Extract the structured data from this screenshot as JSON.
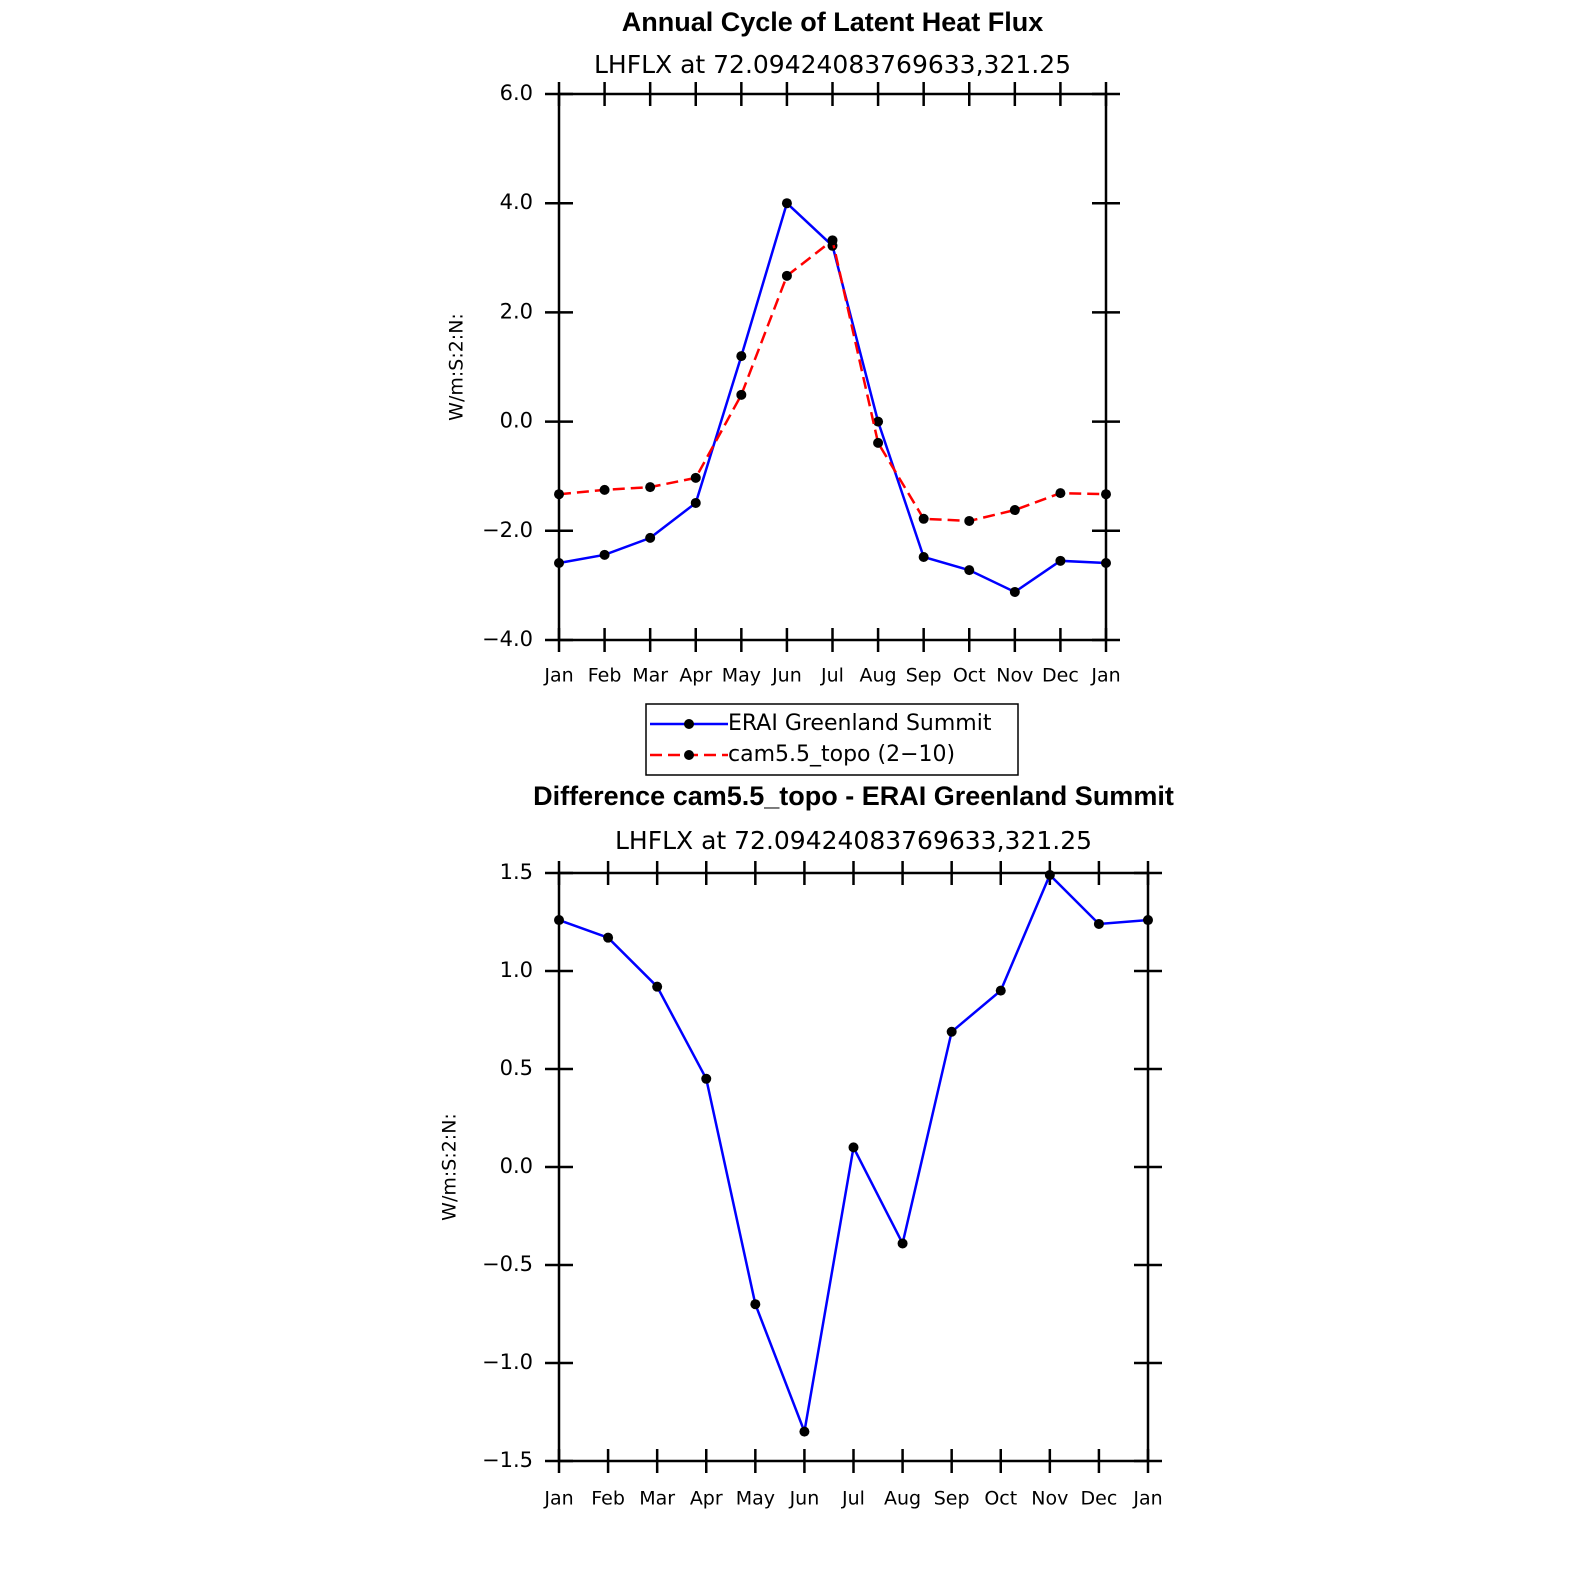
{
  "chart_data": [
    {
      "type": "line",
      "title": "Annual Cycle of Latent Heat Flux",
      "subtitle": "LHFLX at 72.09424083769633,321.25",
      "ylabel": "W/m:S:2:N:",
      "categories": [
        "Jan",
        "Feb",
        "Mar",
        "Apr",
        "May",
        "Jun",
        "Jul",
        "Aug",
        "Sep",
        "Oct",
        "Nov",
        "Dec",
        "Jan"
      ],
      "series": [
        {
          "name": "ERAI Greenland Summit",
          "color": "#0000ff",
          "linestyle": "solid",
          "values": [
            -2.59,
            -2.44,
            -2.13,
            -1.49,
            1.2,
            4.0,
            3.22,
            0.0,
            -2.48,
            -2.72,
            -3.12,
            -2.55,
            -2.59
          ]
        },
        {
          "name": "cam5.5_topo (2−10)",
          "color": "#ff0000",
          "linestyle": "dashed",
          "values": [
            -1.33,
            -1.25,
            -1.2,
            -1.03,
            0.49,
            2.67,
            3.32,
            -0.39,
            -1.78,
            -1.82,
            -1.62,
            -1.31,
            -1.33
          ]
        }
      ],
      "ylim": [
        -4,
        6
      ],
      "yticks": [
        {
          "value": -4,
          "label": "−4.0"
        },
        {
          "value": -2,
          "label": "−2.0"
        },
        {
          "value": 0,
          "label": "0.0"
        },
        {
          "value": 2,
          "label": "2.0"
        },
        {
          "value": 4,
          "label": "4.0"
        },
        {
          "value": 6,
          "label": "6.0"
        }
      ],
      "legend": "bottom"
    },
    {
      "type": "line",
      "title": "Difference cam5.5_topo - ERAI Greenland Summit",
      "subtitle": "LHFLX at 72.09424083769633,321.25",
      "ylabel": "W/m:S:2:N:",
      "categories": [
        "Jan",
        "Feb",
        "Mar",
        "Apr",
        "May",
        "Jun",
        "Jul",
        "Aug",
        "Sep",
        "Oct",
        "Nov",
        "Dec",
        "Jan"
      ],
      "color": "#0000ff",
      "values": [
        1.26,
        1.17,
        0.92,
        0.45,
        -0.7,
        -1.35,
        0.1,
        -0.39,
        0.69,
        0.9,
        1.49,
        1.24,
        1.26
      ],
      "ylim": [
        -1.5,
        1.5
      ],
      "yticks": [
        {
          "value": -1.5,
          "label": "−1.5"
        },
        {
          "value": -1,
          "label": "−1.0"
        },
        {
          "value": -0.5,
          "label": "−0.5"
        },
        {
          "value": 0,
          "label": "0.0"
        },
        {
          "value": 0.5,
          "label": "0.5"
        },
        {
          "value": 1,
          "label": "1.0"
        },
        {
          "value": 1.5,
          "label": "1.5"
        }
      ]
    }
  ]
}
